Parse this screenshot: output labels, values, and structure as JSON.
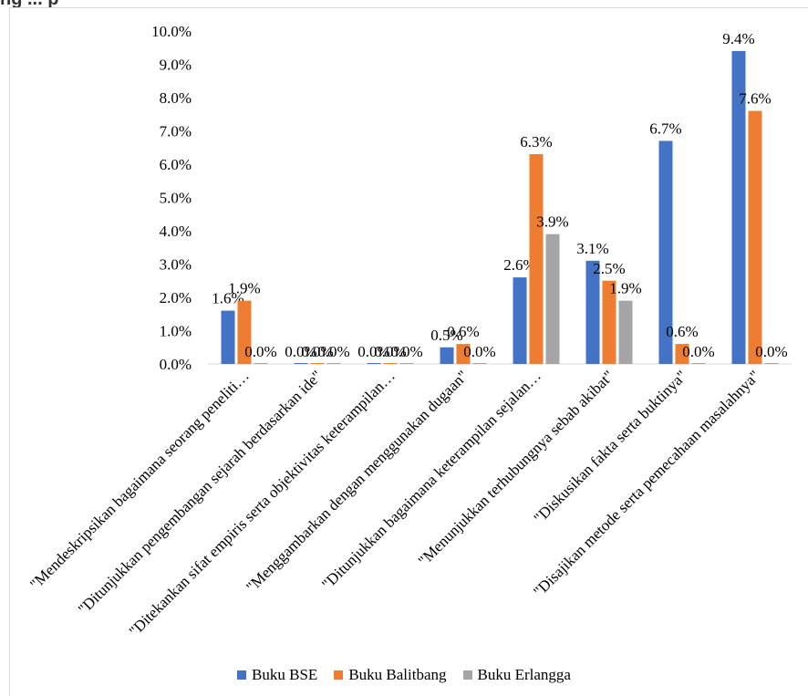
{
  "header": {
    "fragment": "ng ... p"
  },
  "chart_data": {
    "type": "bar",
    "categories": [
      "\"Mendeskripsikan bagaimana seorang peneliti…",
      "\"Ditunjukkan pengembangan sejarah berdasarkan ide\"",
      "\"Ditekankan sifat empiris serta objektivitas keterampilan…",
      "\"Menggambarkan dengan menggunakan dugaan\"",
      "\"Ditunjukkan bagaimana keterampilan sejalan…",
      "\"Menunjukkan terhubungnya sebab akibat\"",
      "\"Diskusikan fakta  serta buktinya\"",
      "\"Disajikan metode  serta pemecahaan masalahnya\""
    ],
    "series": [
      {
        "name": "Buku BSE",
        "color": "#4472c4",
        "values": [
          1.6,
          0.0,
          0.0,
          0.5,
          2.6,
          3.1,
          6.7,
          9.4
        ]
      },
      {
        "name": "Buku Balitbang",
        "color": "#ed7d31",
        "values": [
          1.9,
          0.0,
          0.0,
          0.6,
          6.3,
          2.5,
          0.6,
          7.6
        ]
      },
      {
        "name": "Buku Erlangga",
        "color": "#a5a5a5",
        "values": [
          0.0,
          0.0,
          0.0,
          0.0,
          3.9,
          1.9,
          0.0,
          0.0
        ]
      }
    ],
    "ylim": [
      0,
      10
    ],
    "yticks": [
      "0.0%",
      "1.0%",
      "2.0%",
      "3.0%",
      "4.0%",
      "5.0%",
      "6.0%",
      "7.0%",
      "8.0%",
      "9.0%",
      "10.0%"
    ],
    "value_format": "percent_1dp",
    "grid": false,
    "legend_position": "bottom"
  }
}
